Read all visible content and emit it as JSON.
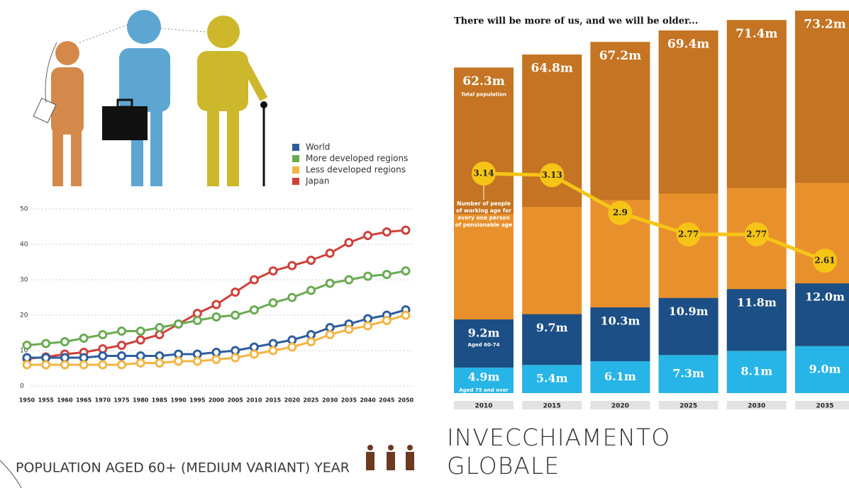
{
  "page_title": "INVECCHIAMENTO GLOBALE",
  "chart_data": [
    {
      "type": "line",
      "title": "POPULATION AGED 60+ (MEDIUM VARIANT) YEAR",
      "x": [
        1950,
        1955,
        1960,
        1965,
        1970,
        1975,
        1980,
        1985,
        1990,
        1995,
        2000,
        2005,
        2010,
        2015,
        2020,
        2025,
        2030,
        2035,
        2040,
        2045,
        2050
      ],
      "xlim": [
        1950,
        2050
      ],
      "xticks": [
        1950,
        1955,
        1960,
        1965,
        1970,
        1975,
        1980,
        1985,
        1990,
        1995,
        2000,
        2005,
        2010,
        2015,
        2020,
        2025,
        2030,
        2035,
        2040,
        2045,
        2050
      ],
      "ylim": [
        0,
        50
      ],
      "yticks": [
        0,
        10,
        20,
        30,
        40,
        50
      ],
      "grid": true,
      "legend": "top right",
      "series": [
        {
          "name": "World",
          "color": "#2f5d9e",
          "values": [
            8,
            8,
            8,
            8,
            8.5,
            8.5,
            8.5,
            8.5,
            9,
            9,
            9.5,
            10,
            11,
            12,
            13,
            14.5,
            16.5,
            17.5,
            19,
            20,
            21.5
          ]
        },
        {
          "name": "More developed regions",
          "color": "#6aab52",
          "values": [
            11.5,
            12,
            12.5,
            13.5,
            14.5,
            15.5,
            15.5,
            16.5,
            17.5,
            18.5,
            19.5,
            20,
            21.5,
            23.5,
            25,
            27,
            29,
            30,
            31,
            31.5,
            32.5
          ]
        },
        {
          "name": "Less developed regions",
          "color": "#f2b545",
          "values": [
            6,
            6,
            6,
            6,
            6,
            6,
            6.5,
            6.5,
            7,
            7,
            7.5,
            8,
            9,
            10,
            11,
            12.5,
            14.5,
            16,
            17,
            18.5,
            20
          ]
        },
        {
          "name": "Japan",
          "color": "#d0413c",
          "values": [
            7.7,
            8.2,
            9,
            9.5,
            10.5,
            11.5,
            13,
            14.5,
            17.5,
            20.5,
            23,
            26.5,
            30,
            32.5,
            34,
            35.5,
            37.5,
            40.5,
            42.5,
            43.5,
            44
          ]
        }
      ]
    },
    {
      "type": "bar",
      "title": "There will be more of us, and we will be older...",
      "categories": [
        "2010",
        "2015",
        "2020",
        "2025",
        "2030",
        "2035"
      ],
      "series": [
        {
          "name": "Total population",
          "color": "#e8912c",
          "values": [
            62.3,
            64.8,
            67.2,
            69.4,
            71.4,
            73.2
          ],
          "value_labels": [
            "62.3m",
            "64.8m",
            "67.2m",
            "69.4m",
            "71.4m",
            "73.2m"
          ]
        },
        {
          "name": "Aged 60-74",
          "color": "#1c4f85",
          "values": [
            9.2,
            9.7,
            10.3,
            10.9,
            11.8,
            12.0
          ],
          "value_labels": [
            "9.2m",
            "9.7m",
            "10.3m",
            "10.9m",
            "11.8m",
            "12.0m"
          ]
        },
        {
          "name": "Aged 75 and over",
          "color": "#27b4e6",
          "values": [
            4.9,
            5.4,
            6.1,
            7.3,
            8.1,
            9.0
          ],
          "value_labels": [
            "4.9m",
            "5.4m",
            "6.1m",
            "7.3m",
            "8.1m",
            "9.0m"
          ]
        }
      ],
      "line": {
        "name": "Number of people of working age for every one person of pensionable age",
        "color": "#f6c416",
        "values": [
          3.14,
          3.13,
          2.9,
          2.77,
          2.77,
          2.61
        ]
      }
    }
  ]
}
